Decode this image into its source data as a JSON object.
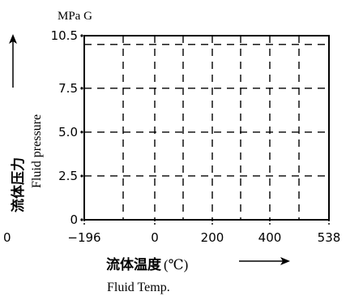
{
  "chart_data": {
    "type": "line",
    "title": "",
    "y_unit": "MPa G",
    "ylabel_cjk": "流体压力",
    "ylabel_en": "Fluid pressure",
    "xlabel_cjk": "流体温度",
    "xlabel_unit": "(℃)",
    "xlabel_en": "Fluid Temp.",
    "x_ticks": [
      -196,
      0,
      200,
      400,
      538
    ],
    "x_tick_labels": [
      "−196",
      "0",
      "200",
      "400",
      "538"
    ],
    "x_stray_label": "0",
    "y_ticks": [
      0,
      2.5,
      5.0,
      7.5,
      10.5
    ],
    "y_tick_labels": [
      "0",
      "2.5",
      "5.0",
      "7.5",
      "10.5"
    ],
    "ylim": [
      0,
      10.5
    ],
    "xlim": [
      -196,
      538
    ],
    "limit_line_y": 10.0,
    "grid": "dashed",
    "series": []
  }
}
